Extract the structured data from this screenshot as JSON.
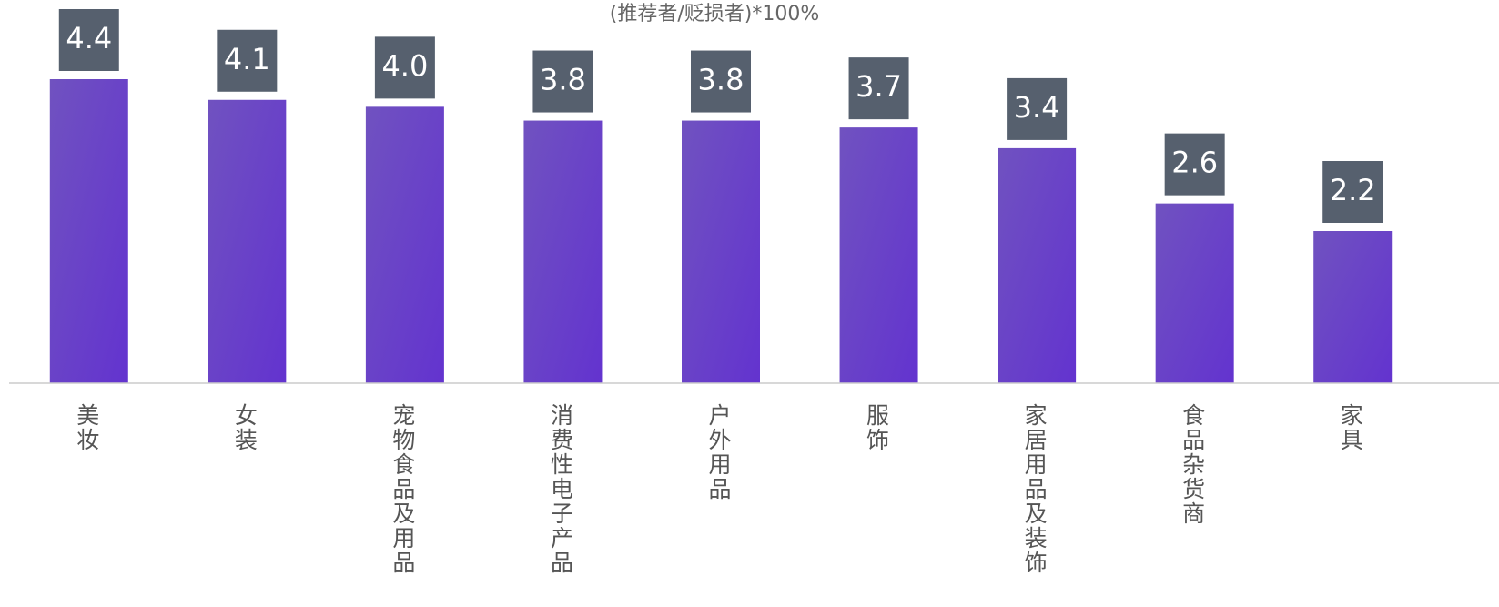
{
  "chart_data": {
    "type": "bar",
    "subtitle": "(推荐者/贬损者)*100%",
    "categories": [
      "美妆",
      "女装",
      "宠物食品及用品",
      "消费性电子产品",
      "户外用品",
      "服饰",
      "家居用品及装饰",
      "食品杂货商",
      "家具"
    ],
    "values": [
      4.4,
      4.1,
      4.0,
      3.8,
      3.8,
      3.7,
      3.4,
      2.6,
      2.2
    ],
    "value_labels": [
      "4.4",
      "4.1",
      "4.0",
      "3.8",
      "3.8",
      "3.7",
      "3.4",
      "2.6",
      "2.2"
    ],
    "color": "#6a45c8",
    "label_box_color": "#56606e",
    "ylim": [
      0,
      5.5
    ]
  }
}
